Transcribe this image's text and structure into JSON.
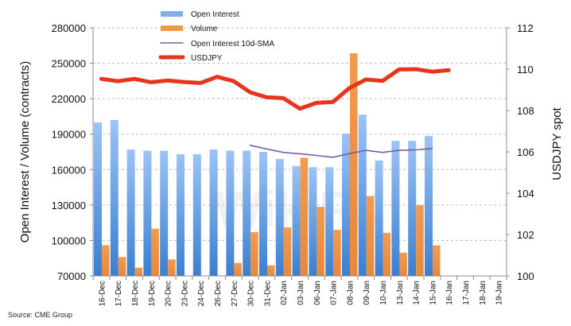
{
  "chart_data": {
    "type": "bar",
    "title": "",
    "xlabel": "",
    "ylabel": "Open Interest / Volume (contracts)",
    "y2label": "USDJPY spot",
    "ylim": [
      70000,
      280000
    ],
    "y2lim": [
      100,
      112
    ],
    "yticks": [
      "280000",
      "250000",
      "220000",
      "190000",
      "160000",
      "130000",
      "100000",
      "70000"
    ],
    "ytick_values": [
      280000,
      250000,
      220000,
      190000,
      160000,
      130000,
      100000,
      70000
    ],
    "y2ticks": [
      "112",
      "110",
      "108",
      "106",
      "104",
      "102",
      "100"
    ],
    "y2tick_values": [
      112,
      110,
      108,
      106,
      104,
      102,
      100
    ],
    "grid": true,
    "legend_position": "top-center",
    "categories": [
      "16-Dec",
      "17-Dec",
      "18-Dec",
      "19-Dec",
      "20-Dec",
      "23-Dec",
      "24-Dec",
      "26-Dec",
      "27-Dec",
      "30-Dec",
      "31-Dec",
      "02-Jan",
      "03-Jan",
      "06-Jan",
      "07-Jan",
      "08-Jan",
      "09-Jan",
      "10-Jan",
      "13-Jan",
      "14-Jan",
      "15-Jan",
      "16-Jan",
      "17-Jan",
      "18-Jan",
      "19-Jan"
    ],
    "series": [
      {
        "name": "Open Interest",
        "type": "bar",
        "axis": "left",
        "color": "#5b9bd5",
        "values": [
          200000,
          202000,
          177000,
          176000,
          176000,
          173000,
          173000,
          177000,
          176000,
          176000,
          175000,
          169000,
          163000,
          162000,
          162000,
          190500,
          206500,
          167700,
          184300,
          184300,
          188400,
          null,
          null,
          null,
          null
        ]
      },
      {
        "name": "Volume",
        "type": "bar",
        "axis": "left",
        "color": "#ed9a4a",
        "values": [
          96000,
          86000,
          77000,
          110000,
          84000,
          null,
          null,
          null,
          81000,
          107000,
          79000,
          111000,
          170000,
          128500,
          109000,
          258500,
          137500,
          106500,
          89700,
          129900,
          95800,
          null,
          null,
          null,
          null
        ]
      },
      {
        "name": "Open Interest 10d-SMA",
        "type": "line",
        "axis": "left",
        "color": "#7b5c9e",
        "values": [
          null,
          null,
          null,
          null,
          null,
          null,
          null,
          null,
          null,
          180500,
          177400,
          174500,
          173400,
          172000,
          170400,
          173500,
          176300,
          174500,
          176300,
          176700,
          177800,
          null,
          null,
          null,
          null
        ]
      },
      {
        "name": "USDJPY",
        "type": "line",
        "axis": "right",
        "color": "#e8341c",
        "values": [
          109.53,
          109.42,
          109.53,
          109.37,
          109.45,
          109.38,
          109.33,
          109.63,
          109.42,
          108.88,
          108.64,
          108.6,
          108.09,
          108.37,
          108.41,
          109.09,
          109.5,
          109.43,
          109.99,
          110.0,
          109.88,
          109.95,
          null,
          null,
          null
        ]
      }
    ]
  },
  "source": "Source: CME Group",
  "watermark": "WikiFX"
}
